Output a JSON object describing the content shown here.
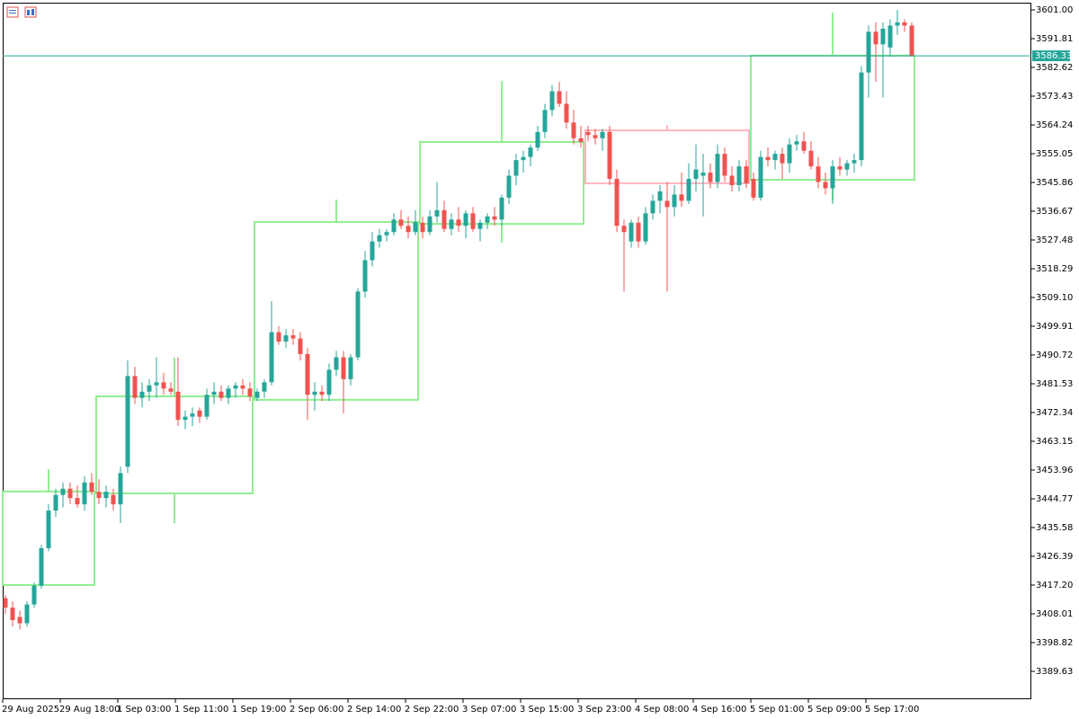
{
  "chart_data": {
    "type": "candlestick",
    "categories": [
      "29 Aug 2025",
      null,
      null,
      null,
      null,
      null,
      null,
      null,
      "29 Aug 18:00",
      null,
      null,
      null,
      null,
      null,
      null,
      null,
      "1 Sep 03:00",
      null,
      null,
      null,
      null,
      null,
      null,
      null,
      "1 Sep 11:00",
      null,
      null,
      null,
      null,
      null,
      null,
      null,
      "1 Sep 19:00",
      null,
      null,
      null,
      null,
      null,
      null,
      null,
      "2 Sep 06:00",
      null,
      null,
      null,
      null,
      null,
      null,
      null,
      "2 Sep 14:00",
      null,
      null,
      null,
      null,
      null,
      null,
      null,
      "2 Sep 22:00",
      null,
      null,
      null,
      null,
      null,
      null,
      null,
      "3 Sep 07:00",
      null,
      null,
      null,
      null,
      null,
      null,
      null,
      "3 Sep 15:00",
      null,
      null,
      null,
      null,
      null,
      null,
      null,
      "3 Sep 23:00",
      null,
      null,
      null,
      null,
      null,
      null,
      null,
      "4 Sep 08:00",
      null,
      null,
      null,
      null,
      null,
      null,
      null,
      "4 Sep 16:00",
      null,
      null,
      null,
      null,
      null,
      null,
      null,
      "5 Sep 01:00",
      null,
      null,
      null,
      null,
      null,
      null,
      null,
      "5 Sep 09:00",
      null,
      null,
      null,
      null,
      null,
      null,
      null,
      "5 Sep 17:00",
      null,
      null,
      null,
      null,
      null,
      null
    ],
    "open": [
      3413,
      3410,
      3407,
      3405,
      3411,
      3417,
      3429,
      3441,
      3446,
      3448,
      3445,
      3443,
      3450,
      3447,
      3445,
      3446,
      3443,
      3455,
      3484,
      3477,
      3479,
      3481,
      3482,
      3480,
      3479,
      3470,
      3471,
      3473,
      3471,
      3478,
      3479,
      3477,
      3480,
      3481,
      3480,
      3477,
      3479,
      3482,
      3498,
      3495,
      3497,
      3496,
      3491,
      3478,
      3479,
      3478,
      3486,
      3490,
      3483,
      3490,
      3511,
      3521,
      3527,
      3529,
      3530,
      3534,
      3532,
      3530,
      3533,
      3530,
      3535,
      3537,
      3531,
      3534,
      3532,
      3536,
      3531,
      3533,
      3535,
      3534,
      3541,
      3548,
      3553,
      3554,
      3557,
      3562,
      3569,
      3575,
      3571,
      3565,
      3560,
      3562,
      3561,
      3560,
      3562,
      3547,
      3532,
      3527,
      3533,
      3527,
      3536,
      3540,
      3540,
      3538,
      3542,
      3540,
      3547,
      3548,
      3549,
      3546,
      3555,
      3548,
      3545,
      3551,
      3547,
      3541,
      3554,
      3553,
      3555,
      3552,
      3558,
      3559,
      3556,
      3551,
      3546,
      3544,
      3551,
      3550,
      3552,
      3553,
      3581,
      3594,
      3590,
      3589,
      3596,
      3597,
      3596
    ],
    "high": [
      3414,
      3412,
      3409,
      3412,
      3418,
      3430,
      3443,
      3448,
      3450,
      3450,
      3449,
      3452,
      3453,
      3451,
      3449,
      3448,
      3455,
      3489,
      3487,
      3482,
      3483,
      3490,
      3485,
      3482,
      3490,
      3473,
      3474,
      3474,
      3480,
      3482,
      3481,
      3481,
      3482,
      3483,
      3482,
      3480,
      3483,
      3508,
      3500,
      3499,
      3499,
      3498,
      3493,
      3482,
      3481,
      3488,
      3492,
      3492,
      3491,
      3512,
      3524,
      3530,
      3531,
      3531,
      3536,
      3537,
      3535,
      3537,
      3535,
      3537,
      3546,
      3540,
      3536,
      3538,
      3537,
      3538,
      3534,
      3536,
      3538,
      3542,
      3550,
      3555,
      3556,
      3558,
      3564,
      3571,
      3577,
      3578,
      3575,
      3569,
      3564,
      3564,
      3563,
      3563,
      3564,
      3550,
      3534,
      3534,
      3535,
      3538,
      3542,
      3545,
      3546,
      3545,
      3549,
      3552,
      3558,
      3555,
      3552,
      3558,
      3557,
      3551,
      3553,
      3553,
      3549,
      3556,
      3557,
      3556,
      3557,
      3560,
      3561,
      3562,
      3559,
      3554,
      3549,
      3553,
      3554,
      3553,
      3555,
      3583,
      3596,
      3597,
      3597,
      3598,
      3601,
      3598,
      3597
    ],
    "low": [
      3408,
      3404,
      3403,
      3404,
      3410,
      3416,
      3428,
      3439,
      3442,
      3443,
      3442,
      3441,
      3446,
      3443,
      3442,
      3441,
      3437,
      3453,
      3475,
      3474,
      3476,
      3477,
      3478,
      3478,
      3468,
      3467,
      3468,
      3469,
      3470,
      3475,
      3476,
      3475,
      3477,
      3478,
      3476,
      3476,
      3477,
      3481,
      3494,
      3493,
      3494,
      3489,
      3470,
      3473,
      3476,
      3476,
      3484,
      3472,
      3481,
      3489,
      3509,
      3519,
      3525,
      3527,
      3529,
      3531,
      3528,
      3529,
      3528,
      3529,
      3533,
      3530,
      3529,
      3530,
      3528,
      3530,
      3527,
      3531,
      3532,
      3532,
      3539,
      3545,
      3549,
      3551,
      3556,
      3560,
      3567,
      3570,
      3563,
      3558,
      3557,
      3559,
      3558,
      3556,
      3545,
      3530,
      3511,
      3525,
      3525,
      3526,
      3534,
      3536,
      3511,
      3535,
      3538,
      3539,
      3543,
      3535,
      3544,
      3544,
      3546,
      3543,
      3543,
      3544,
      3540,
      3540,
      3551,
      3550,
      3547,
      3549,
      3556,
      3555,
      3550,
      3544,
      3542,
      3539,
      3548,
      3548,
      3549,
      3551,
      3573,
      3578,
      3573,
      3586,
      3593,
      3594,
      3586
    ],
    "close": [
      3410,
      3406,
      3405,
      3411,
      3417,
      3429,
      3441,
      3446,
      3448,
      3445,
      3443,
      3450,
      3447,
      3445,
      3447,
      3443,
      3453,
      3484,
      3477,
      3479,
      3481,
      3482,
      3480,
      3479,
      3470,
      3471,
      3472,
      3471,
      3478,
      3479,
      3477,
      3480,
      3481,
      3480,
      3477.5,
      3479,
      3482,
      3498,
      3495,
      3497,
      3496,
      3491,
      3478,
      3479,
      3478,
      3486,
      3490,
      3483,
      3490,
      3511,
      3521,
      3527,
      3529,
      3530,
      3534,
      3532,
      3530,
      3533.2,
      3530,
      3535,
      3537,
      3531,
      3534,
      3532,
      3536,
      3531,
      3533,
      3535,
      3534,
      3541,
      3548,
      3553,
      3554,
      3557,
      3562,
      3569,
      3575,
      3571,
      3565,
      3560,
      3558.8,
      3561,
      3560,
      3562,
      3547,
      3532,
      3530,
      3533,
      3527,
      3536,
      3540,
      3543,
      3538,
      3542,
      3540,
      3547,
      3550,
      3549,
      3546,
      3555,
      3548,
      3545,
      3551,
      3545.6,
      3541,
      3554,
      3553,
      3555,
      3552,
      3558,
      3559,
      3556,
      3551,
      3546,
      3544,
      3551,
      3550,
      3552,
      3553,
      3581,
      3594,
      3590,
      3595,
      3596,
      3597,
      3596,
      3586.33
    ],
    "up_color": "#26a69a",
    "down_color": "#ef5350",
    "daily": {
      "open": [
        3417.2,
        3446.5,
        3476.4,
        3532.6,
        3562.5,
        3546.7
      ],
      "high": [
        3454.2,
        3489.9,
        3540.4,
        3578.3,
        3564.2,
        3600.1
      ],
      "low": [
        3417.2,
        3437,
        3476.4,
        3526.6,
        3545.6,
        3540.1
      ],
      "close": [
        3447.1,
        3477.5,
        3533.2,
        3558.8,
        3545.6,
        3586.4
      ],
      "bars": [
        13,
        22,
        23,
        23,
        23,
        23
      ]
    },
    "daily_up_color": "#90ee90",
    "daily_down_color": "#ffb6c1",
    "last_price": 3586.33,
    "last_price_color": "#26a69a",
    "ylim": [
      3380.72,
      3603.3
    ],
    "yticks": [
      {
        "value": 3601,
        "label": "3601.00"
      },
      3591.81,
      3582.62,
      3573.43,
      3564.24,
      3555.05,
      3545.86,
      3536.67,
      3527.48,
      3518.29,
      {
        "value": 3509.1,
        "label": "3509.10"
      },
      3499.91,
      3490.72,
      3481.53,
      3472.34,
      3463.15,
      3453.96,
      3444.77,
      3435.58,
      3426.39,
      {
        "value": 3417.2,
        "label": "3417.20"
      },
      3408.01,
      3398.82,
      3389.63
    ],
    "grid": false
  }
}
